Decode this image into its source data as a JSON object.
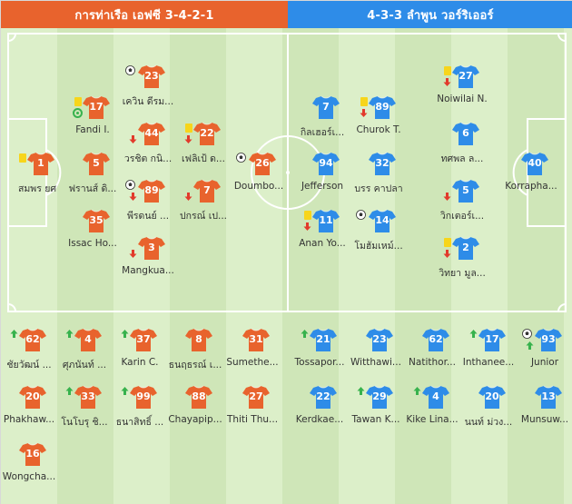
{
  "header": {
    "home": "การท่าเรือ เอฟซี 3-4-2-1",
    "away": "4-3-3 ลำพูน วอร์ริเออร์"
  },
  "colors": {
    "home": "#e8632d",
    "away": "#2e8ce8",
    "card_yellow": "#f7d51b",
    "arrow_down": "#e23a2b",
    "arrow_up": "#37b24d"
  },
  "home_lineup": [
    {
      "num": "1",
      "name": "สมพร ยศ",
      "icons": [
        "yellow-card"
      ]
    },
    {
      "num": "17",
      "name": "Fandi I.",
      "icons": [
        "yellow-card",
        "sub-green"
      ]
    },
    {
      "num": "5",
      "name": "ฟรานส์ ดิ...",
      "icons": []
    },
    {
      "num": "35",
      "name": "Issac Ho...",
      "icons": []
    },
    {
      "num": "23",
      "name": "เควิน ดีรม...",
      "icons": [
        "ball"
      ]
    },
    {
      "num": "44",
      "name": "วรชิต กนิ...",
      "icons": [
        "arrow-down"
      ]
    },
    {
      "num": "89",
      "name": "พีรดนย์ ...",
      "icons": [
        "ball",
        "arrow-down"
      ]
    },
    {
      "num": "3",
      "name": "Mangkua...",
      "icons": [
        "arrow-down"
      ]
    },
    {
      "num": "22",
      "name": "เฟลิเป้ ด...",
      "icons": [
        "yellow-card",
        "arrow-down"
      ]
    },
    {
      "num": "7",
      "name": "ปกรณ์ เป...",
      "icons": [
        "arrow-down"
      ]
    },
    {
      "num": "26",
      "name": "Doumbo...",
      "icons": [
        "ball"
      ]
    }
  ],
  "away_lineup": [
    {
      "num": "7",
      "name": "กิลเฮอร์เ...",
      "icons": []
    },
    {
      "num": "94",
      "name": "Jefferson",
      "icons": []
    },
    {
      "num": "11",
      "name": "Anan Yo...",
      "icons": [
        "yellow-card",
        "arrow-down"
      ]
    },
    {
      "num": "89",
      "name": "Churok T.",
      "icons": [
        "yellow-card",
        "arrow-down"
      ]
    },
    {
      "num": "32",
      "name": "บรร คาปลา",
      "icons": []
    },
    {
      "num": "14",
      "name": "โมฮัมเหม์...",
      "icons": [
        "ball"
      ]
    },
    {
      "num": "27",
      "name": "Noiwilai N.",
      "icons": [
        "yellow-card",
        "arrow-down"
      ]
    },
    {
      "num": "6",
      "name": "ทศพล ล...",
      "icons": []
    },
    {
      "num": "5",
      "name": "วิกเตอร์เ...",
      "icons": [
        "arrow-down"
      ]
    },
    {
      "num": "2",
      "name": "วิทยา มูล...",
      "icons": [
        "yellow-card",
        "arrow-down"
      ]
    },
    {
      "num": "40",
      "name": "Korrapha...",
      "icons": []
    }
  ],
  "home_subs": [
    {
      "num": "62",
      "name": "ชัยวัฒน์ ...",
      "icons": [
        "arrow-up"
      ]
    },
    {
      "num": "4",
      "name": "ศุภนันท์ ...",
      "icons": [
        "arrow-up"
      ]
    },
    {
      "num": "37",
      "name": "Karin C.",
      "icons": [
        "arrow-up"
      ]
    },
    {
      "num": "8",
      "name": "ธนฤธรณ์ เ...",
      "icons": []
    },
    {
      "num": "31",
      "name": "Sumethe...",
      "icons": []
    },
    {
      "num": "20",
      "name": "Phakhaw...",
      "icons": []
    },
    {
      "num": "33",
      "name": "โนโบรุ ชิ...",
      "icons": [
        "arrow-up"
      ]
    },
    {
      "num": "99",
      "name": "ธนาสิทธิ์ ...",
      "icons": [
        "arrow-up"
      ]
    },
    {
      "num": "88",
      "name": "Chayapip...",
      "icons": []
    },
    {
      "num": "27",
      "name": "Thiti Thu...",
      "icons": []
    },
    {
      "num": "16",
      "name": "Wongcha...",
      "icons": []
    }
  ],
  "away_subs": [
    {
      "num": "21",
      "name": "Tossapor...",
      "icons": [
        "arrow-up"
      ]
    },
    {
      "num": "23",
      "name": "Witthawi...",
      "icons": []
    },
    {
      "num": "62",
      "name": "Natithor...",
      "icons": []
    },
    {
      "num": "17",
      "name": "Inthanee...",
      "icons": [
        "arrow-up"
      ]
    },
    {
      "num": "93",
      "name": "Junior",
      "icons": [
        "ball",
        "arrow-up"
      ]
    },
    {
      "num": "22",
      "name": "Kerdkae...",
      "icons": []
    },
    {
      "num": "29",
      "name": "Tawan K...",
      "icons": [
        "arrow-up"
      ]
    },
    {
      "num": "4",
      "name": "Kike Lina...",
      "icons": [
        "arrow-up"
      ]
    },
    {
      "num": "20",
      "name": "นนท์ ม่วง...",
      "icons": []
    },
    {
      "num": "13",
      "name": "Munsuw...",
      "icons": []
    }
  ]
}
